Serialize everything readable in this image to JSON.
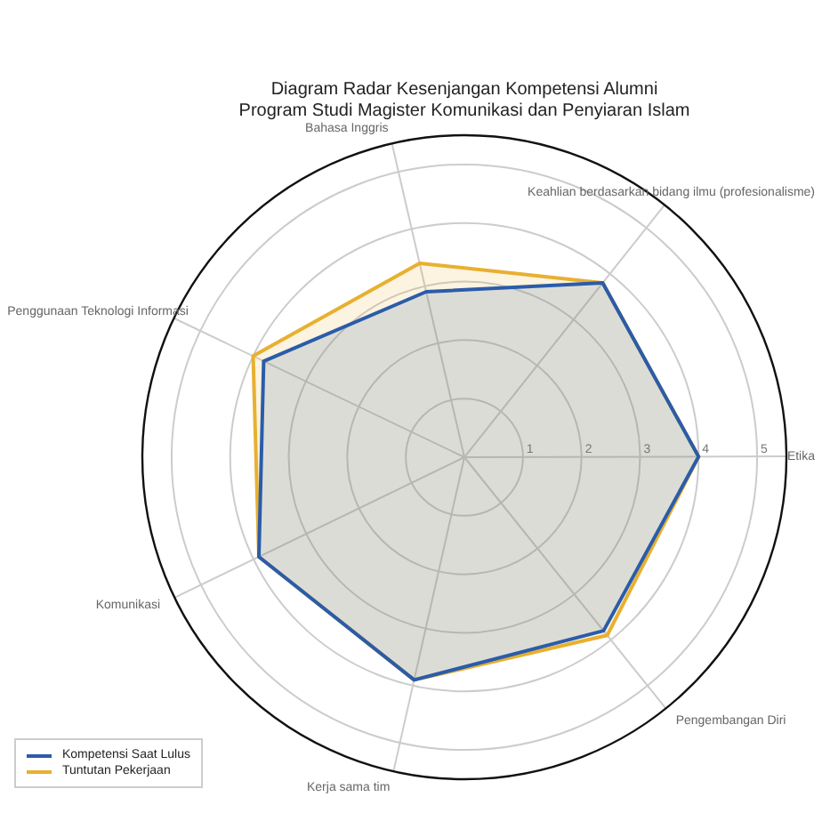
{
  "chart_data": {
    "type": "radar",
    "title": "Diagram Radar Kesenjangan Kompetensi Alumni\nProgram Studi Magister Komunikasi dan Penyiaran Islam",
    "categories": [
      "Bahasa Inggris",
      "Keahlian berdasarkan bidang ilmu (profesionalisme)",
      "Etika",
      "Pengembangan Diri",
      "Kerja sama tim",
      "Komunikasi",
      "Penggunaan Teknologi Informasi"
    ],
    "series": [
      {
        "name": "Kompetensi Saat Lulus",
        "color": "#2b5ca8",
        "values": [
          2.9,
          3.8,
          4,
          3.8,
          3.9,
          3.9,
          3.8
        ]
      },
      {
        "name": "Tuntutan Pekerjaan",
        "color": "#e8b030",
        "values": [
          3.4,
          3.8,
          4,
          3.9,
          3.9,
          3.9,
          4.0
        ]
      }
    ],
    "ylim": [
      0,
      5.5
    ],
    "yticks": [
      1,
      2,
      3,
      4,
      5
    ],
    "grid": true,
    "legend": "bottom left"
  }
}
